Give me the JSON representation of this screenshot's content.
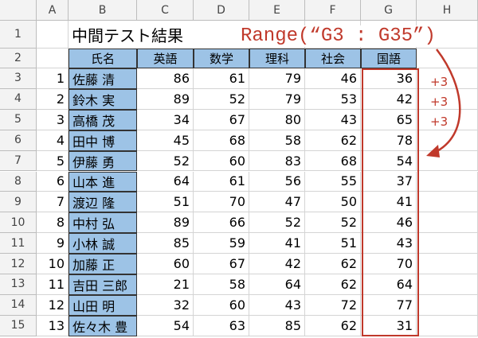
{
  "column_headers": [
    "A",
    "B",
    "C",
    "D",
    "E",
    "F",
    "G",
    "H"
  ],
  "row_headers": [
    "1",
    "2",
    "3",
    "4",
    "5",
    "6",
    "7",
    "8",
    "9",
    "10",
    "11",
    "12",
    "13",
    "14",
    "15"
  ],
  "sheet": {
    "title": "中間テスト結果",
    "headers": [
      "氏名",
      "英語",
      "数学",
      "理科",
      "社会",
      "国語"
    ],
    "rows": [
      [
        1,
        "佐藤 清",
        86,
        61,
        79,
        46,
        36
      ],
      [
        2,
        "鈴木 実",
        89,
        52,
        79,
        53,
        42
      ],
      [
        3,
        "高橋 茂",
        34,
        67,
        80,
        43,
        65
      ],
      [
        4,
        "田中 博",
        45,
        68,
        58,
        62,
        78
      ],
      [
        5,
        "伊藤 勇",
        52,
        60,
        83,
        68,
        54
      ],
      [
        6,
        "山本 進",
        64,
        61,
        56,
        55,
        37
      ],
      [
        7,
        "渡辺 隆",
        51,
        70,
        47,
        50,
        41
      ],
      [
        8,
        "中村 弘",
        89,
        66,
        52,
        52,
        46
      ],
      [
        9,
        "小林 誠",
        85,
        59,
        41,
        51,
        43
      ],
      [
        10,
        "加藤 正",
        60,
        67,
        42,
        62,
        70
      ],
      [
        11,
        "吉田 三郎",
        21,
        58,
        64,
        62,
        64
      ],
      [
        12,
        "山田 明",
        32,
        60,
        43,
        72,
        77
      ],
      [
        13,
        "佐々木 豊",
        54,
        63,
        85,
        62,
        31
      ]
    ]
  },
  "annotation": {
    "text": "Range(“G3 : G35”)",
    "steps": [
      "+3",
      "+3",
      "+3"
    ]
  }
}
